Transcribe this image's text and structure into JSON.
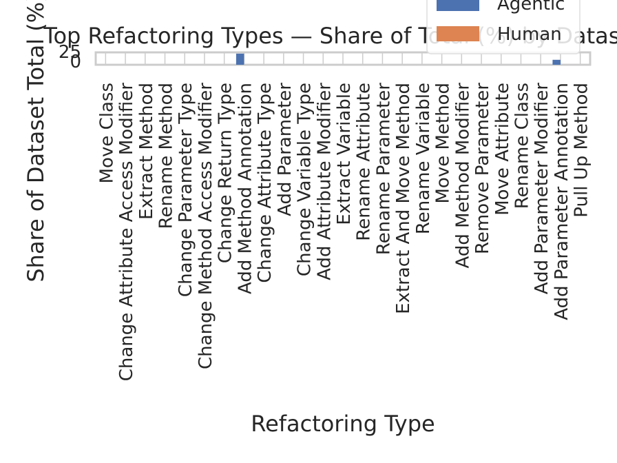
{
  "chart_data": {
    "type": "bar",
    "title": "Top Refactoring Types — Share of Total (%) by Dataset",
    "xlabel": "Refactoring Type",
    "ylabel": "Share of Dataset Total (%)",
    "yticks": [
      "0",
      "25"
    ],
    "ylim": [
      0,
      30
    ],
    "grid": true,
    "legend_position": "top-right",
    "categories": [
      "Move Class",
      "Change Attribute Access Modifier",
      "Extract Method",
      "Rename Method",
      "Change Parameter Type",
      "Change Method Access Modifier",
      "Change Return Type",
      "Add Method Annotation",
      "Change Attribute Type",
      "Add Parameter",
      "Change Variable Type",
      "Add Attribute Modifier",
      "Extract Variable",
      "Rename Attribute",
      "Rename Parameter",
      "Extract And Move Method",
      "Rename Variable",
      "Move Method",
      "Add Method Modifier",
      "Remove Parameter",
      "Move Attribute",
      "Rename Class",
      "Add Parameter Modifier",
      "Add Parameter Annotation",
      "Pull Up Method"
    ],
    "series": [
      {
        "name": "Agentic",
        "color": "#4c72b0",
        "values": [
          0,
          0,
          0,
          0,
          0,
          0,
          0,
          27,
          0,
          0,
          0,
          0,
          0,
          0,
          0,
          0,
          0,
          0,
          0,
          0,
          0,
          0,
          0,
          12,
          0
        ]
      },
      {
        "name": "Human",
        "color": "#dd8452",
        "values": [
          0,
          0,
          0,
          0,
          0,
          0,
          0,
          0,
          0,
          0,
          0,
          0,
          0,
          0,
          0,
          0,
          0,
          0,
          0,
          0,
          0,
          0,
          0,
          0,
          0
        ]
      }
    ]
  }
}
